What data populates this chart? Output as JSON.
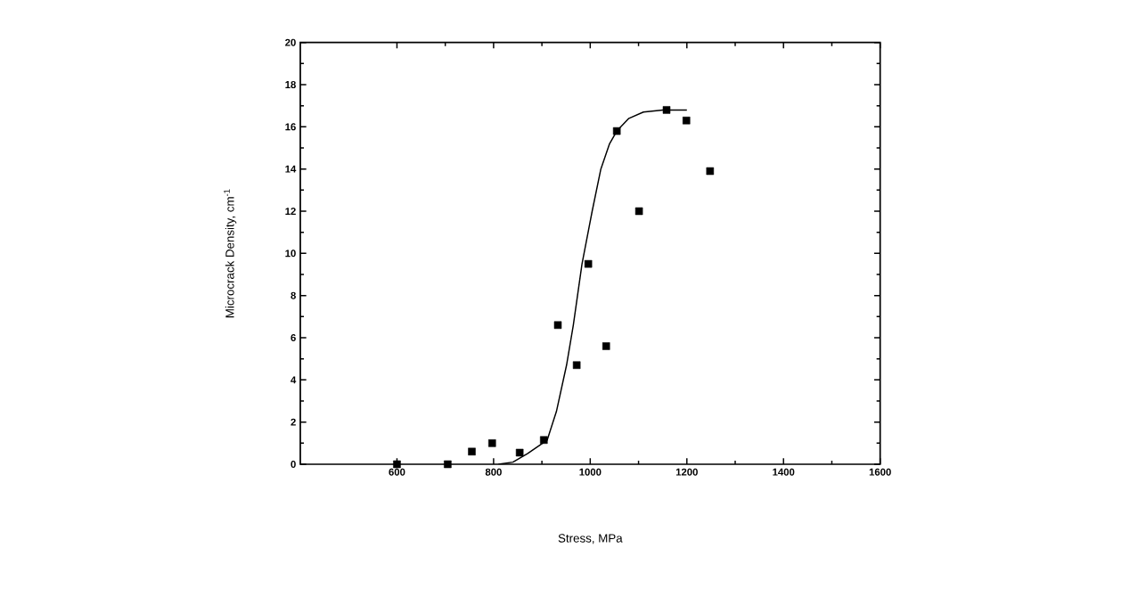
{
  "chart_data": {
    "type": "scatter",
    "xlabel": "Stress, MPa",
    "ylabel": "Microcrack Density, cm$^{-1}$",
    "xlim": [
      400,
      1600
    ],
    "ylim": [
      0,
      20
    ],
    "xticks": [
      600,
      800,
      1000,
      1200,
      1400,
      1600
    ],
    "yticks": [
      0,
      2,
      4,
      6,
      8,
      10,
      12,
      14,
      16,
      18,
      20
    ],
    "grid": false,
    "marker": "square",
    "series": [
      {
        "color": "#000000",
        "x": [
          600,
          705,
          755,
          797,
          854,
          904,
          933,
          972,
          996,
          1033,
          1055,
          1101,
          1158,
          1199,
          1248
        ],
        "values": [
          0,
          0,
          0.6,
          1.0,
          0.55,
          1.15,
          6.6,
          4.7,
          9.5,
          5.6,
          15.8,
          12.0,
          16.8,
          16.3,
          13.9
        ]
      },
      {
        "type": "line",
        "color": "#000000",
        "marker": "none",
        "x": [
          810,
          840,
          870,
          911,
          930,
          951,
          965,
          983,
          1004,
          1022,
          1040,
          1055,
          1080,
          1110,
          1150,
          1200
        ],
        "values": [
          0,
          0.1,
          0.5,
          1.15,
          2.5,
          4.7,
          6.6,
          9.5,
          12.0,
          14.0,
          15.2,
          15.8,
          16.4,
          16.7,
          16.8,
          16.8
        ]
      }
    ]
  }
}
